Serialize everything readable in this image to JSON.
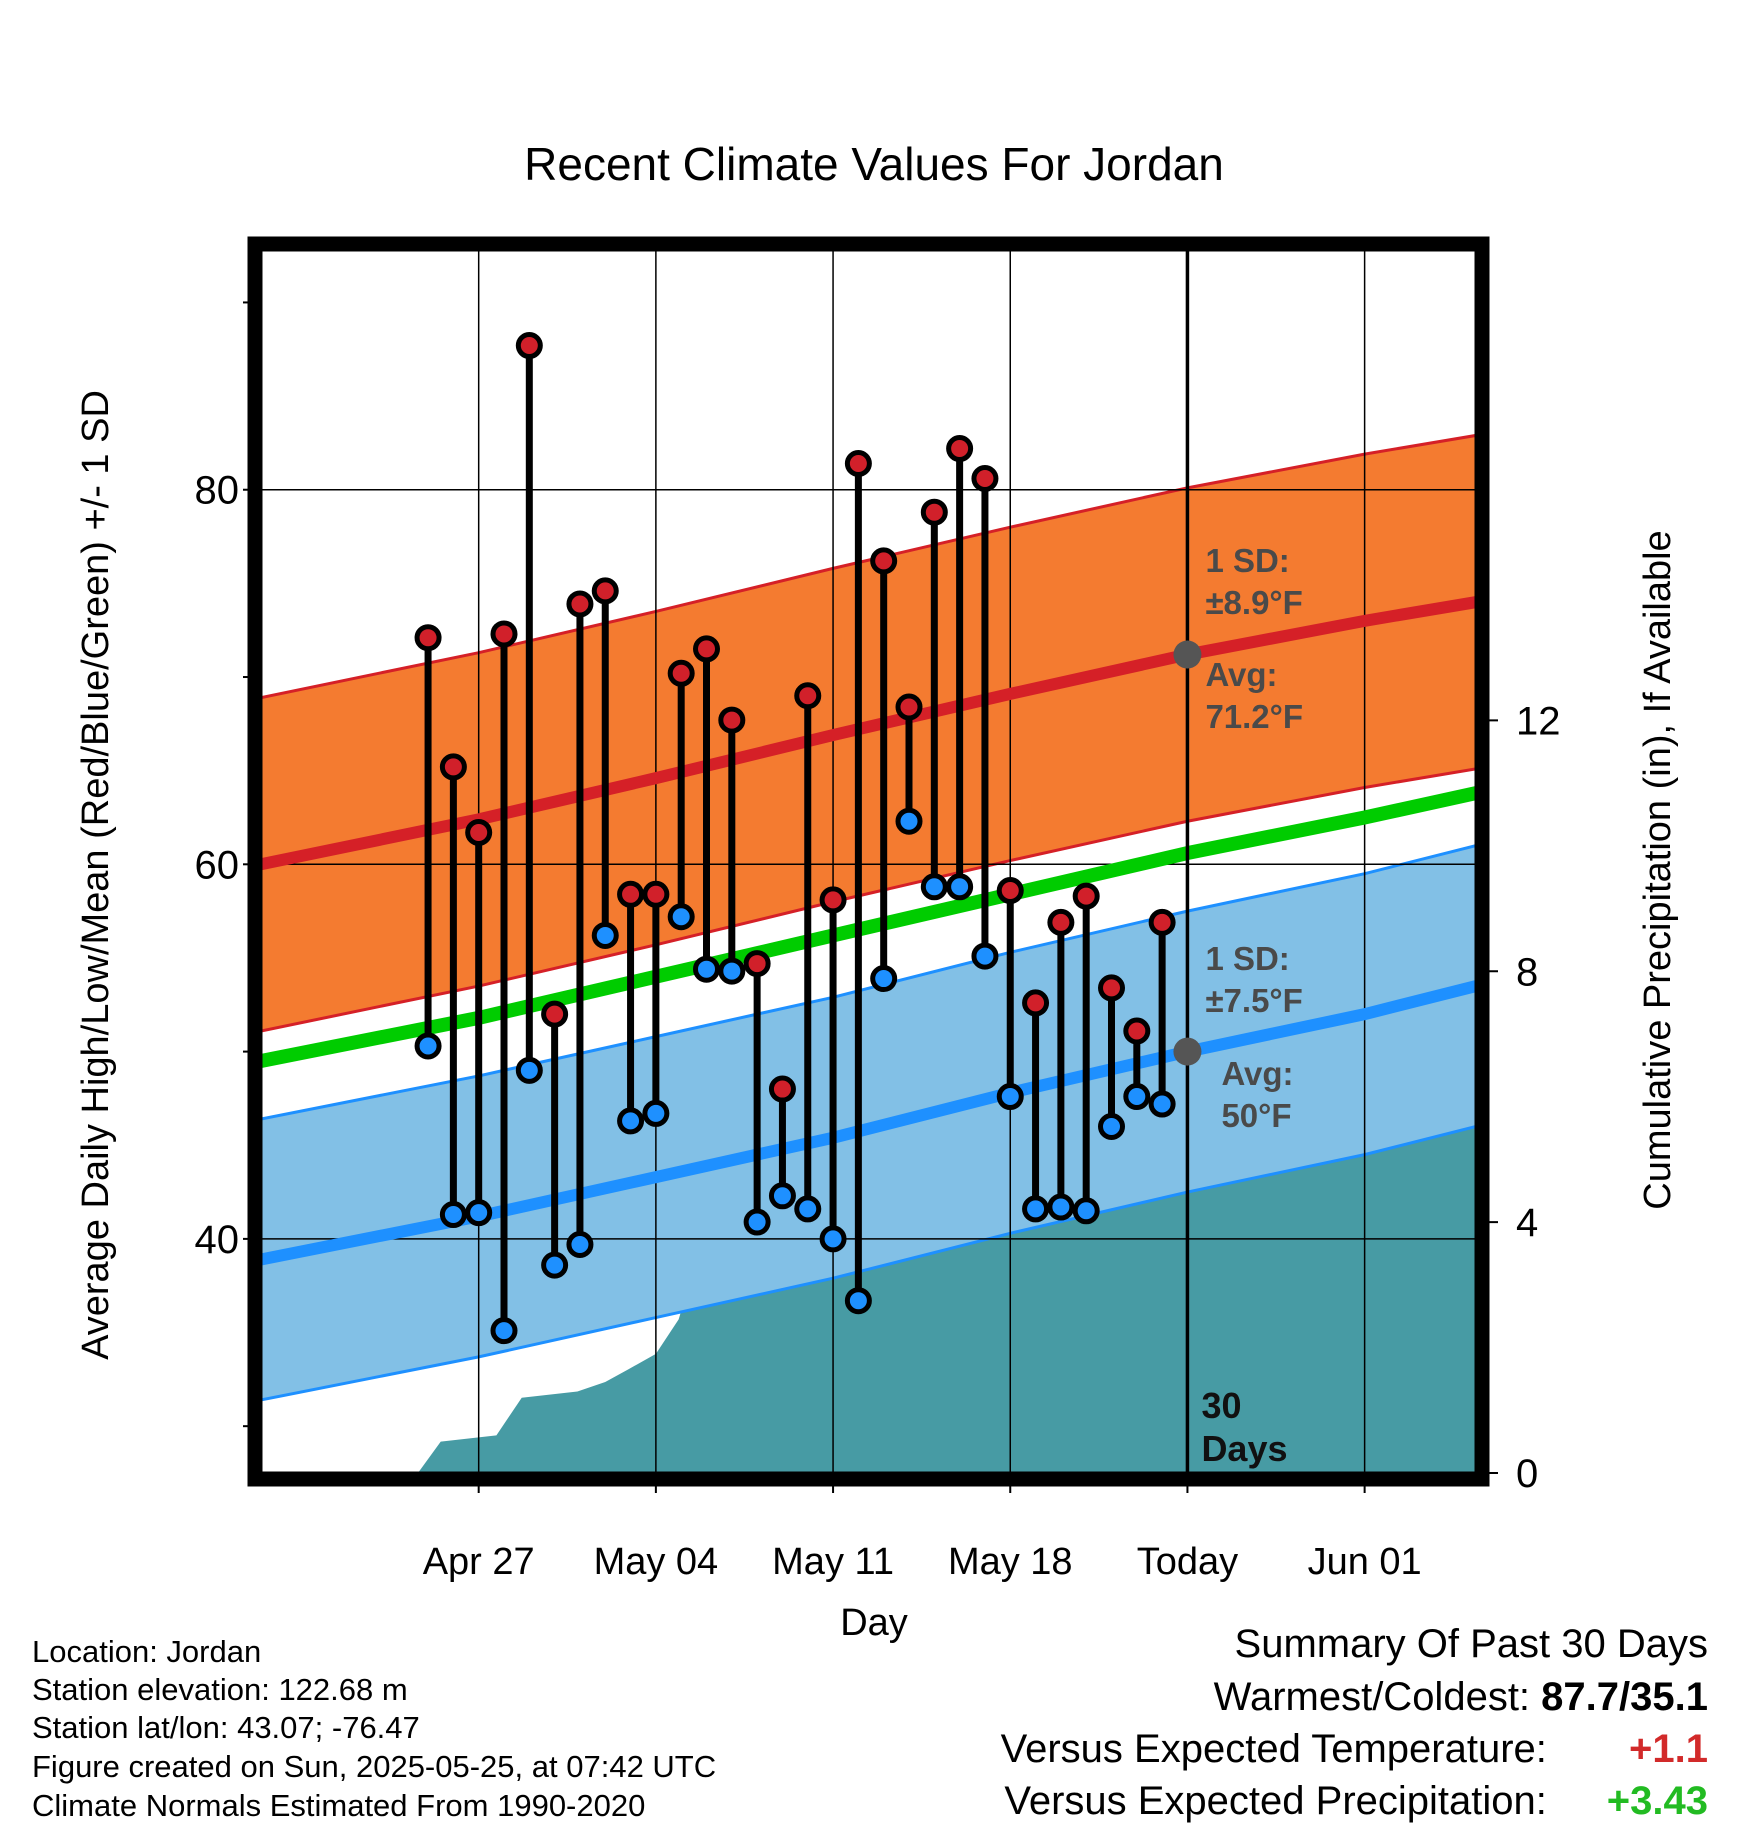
{
  "chart_data": {
    "type": "line",
    "title": "Recent Climate Values For Jordan",
    "xlabel": "Day",
    "ylabel_left": "Average Daily High/Low/Mean (Red/Blue/Green) +/- 1 SD",
    "ylabel_right": "Cumulative Precipitation (in), If Available",
    "y_left_range": [
      27.5,
      92.8
    ],
    "y_left_ticks": [
      {
        "value": 40,
        "label": "40"
      },
      {
        "value": 60,
        "label": "60"
      },
      {
        "value": 80,
        "label": "80"
      }
    ],
    "y_left_minor_ticks": [
      30,
      50,
      70,
      90
    ],
    "y_right_range": [
      0,
      19.5
    ],
    "y_right_ticks": [
      {
        "value": 0,
        "label": "0"
      },
      {
        "value": 4,
        "label": "4"
      },
      {
        "value": 8,
        "label": "8"
      },
      {
        "value": 12,
        "label": "12"
      }
    ],
    "x_range": [
      -36.6,
      11.4
    ],
    "x_ticks": [
      {
        "day": -28,
        "label": "Apr 27"
      },
      {
        "day": -21,
        "label": "May 04"
      },
      {
        "day": -14,
        "label": "May 11"
      },
      {
        "day": -7,
        "label": "May 18"
      },
      {
        "day": 0,
        "label": "Today"
      },
      {
        "day": 7,
        "label": "Jun 01"
      }
    ],
    "normals": {
      "x": [
        -36.6,
        -28,
        -21,
        -14,
        -7,
        0,
        7,
        11.4
      ],
      "high_avg": [
        60.0,
        62.4,
        64.6,
        66.9,
        69.1,
        71.2,
        73.0,
        74.0
      ],
      "high_sd": 8.9,
      "low_avg": [
        38.9,
        41.2,
        43.3,
        45.4,
        47.8,
        50.0,
        52.0,
        53.5
      ],
      "low_sd": 7.5,
      "mean_avg": [
        49.5,
        51.8,
        54.0,
        56.2,
        58.4,
        60.6,
        62.5,
        63.8
      ]
    },
    "daily": {
      "day": [
        -30,
        -29,
        -28,
        -27,
        -26,
        -25,
        -24,
        -23,
        -22,
        -21,
        -20,
        -19,
        -18,
        -17,
        -16,
        -15,
        -14,
        -13,
        -12,
        -11,
        -10,
        -9,
        -8,
        -7,
        -6,
        -5,
        -4,
        -3,
        -2,
        -1
      ],
      "high": [
        72.1,
        65.2,
        61.7,
        72.3,
        87.7,
        52.0,
        73.9,
        74.6,
        58.4,
        58.4,
        70.2,
        71.5,
        67.7,
        54.7,
        48.0,
        69.0,
        58.1,
        81.4,
        76.2,
        68.4,
        78.8,
        82.2,
        80.6,
        58.6,
        52.6,
        56.9,
        58.3,
        53.4,
        51.1,
        56.9
      ],
      "low": [
        50.3,
        41.3,
        41.4,
        35.1,
        49.0,
        38.6,
        39.7,
        56.2,
        46.3,
        46.7,
        57.2,
        54.4,
        54.3,
        40.9,
        42.3,
        41.6,
        40.0,
        36.7,
        53.9,
        62.3,
        58.8,
        58.8,
        55.1,
        47.6,
        41.6,
        41.7,
        41.5,
        46.0,
        47.6,
        47.2
      ]
    },
    "precip": {
      "day": [
        -36.6,
        -30.4,
        -29.5,
        -27.3,
        -26.3,
        -25.2,
        -24.1,
        -23,
        -22.1,
        -21,
        -20.1,
        -19.2,
        -18.6,
        -18,
        -17.8,
        -16.6,
        -14.8,
        -14.5,
        -13.2,
        -12.2,
        -11,
        -9.7,
        -9.2,
        -8.2,
        -7.2,
        -6.3,
        -5.1,
        -4.2,
        -3.4,
        -2.9,
        -1.9,
        -1.3,
        0,
        11.4
      ],
      "cum": [
        0,
        0,
        0.5,
        0.6,
        1.2,
        1.25,
        1.3,
        1.45,
        1.65,
        1.9,
        2.45,
        3.65,
        4.1,
        4.2,
        4.2,
        4.45,
        4.5,
        4.5,
        4.55,
        4.7,
        4.75,
        4.85,
        5.0,
        5.45,
        5.55,
        5.6,
        5.7,
        5.9,
        6.15,
        6.3,
        6.5,
        6.7,
        6.7,
        6.7
      ]
    },
    "annotations": {
      "high_sd": "1 SD:",
      "high_sd_value": "±8.9°F",
      "high_avg": "Avg:",
      "high_avg_value": "71.2°F",
      "low_sd": "1 SD:",
      "low_sd_value": "±7.5°F",
      "low_avg": "Avg:",
      "low_avg_value": "50°F",
      "window_days": "30",
      "window_label": "Days"
    },
    "colors": {
      "high_band": "#f47b30",
      "high_line": "#d52027",
      "low_band": "#82c0e6",
      "low_line": "#1e90ff",
      "mean_line": "#00cc00",
      "precip": "#479ba4",
      "high_marker": "#d1202a",
      "low_marker": "#1e90ff",
      "annotation": "#4a4a4a"
    }
  },
  "info": {
    "location": "Location: Jordan",
    "elevation": "Station elevation: 122.68 m",
    "latlon": "Station lat/lon: 43.07; -76.47",
    "created": "Figure created on Sun, 2025-05-25, at 07:42 UTC",
    "normals": "Climate Normals Estimated From 1990-2020"
  },
  "summary": {
    "title": "Summary Of Past 30 Days",
    "warmest_label": "Warmest/Coldest:",
    "warmest_value": "87.7/35.1",
    "temp_label": "Versus Expected Temperature:",
    "temp_value": "+1.1",
    "temp_color": "#d22a2a",
    "precip_label": "Versus Expected Precipitation:",
    "precip_value": "+3.43",
    "precip_color": "#22bb22"
  }
}
